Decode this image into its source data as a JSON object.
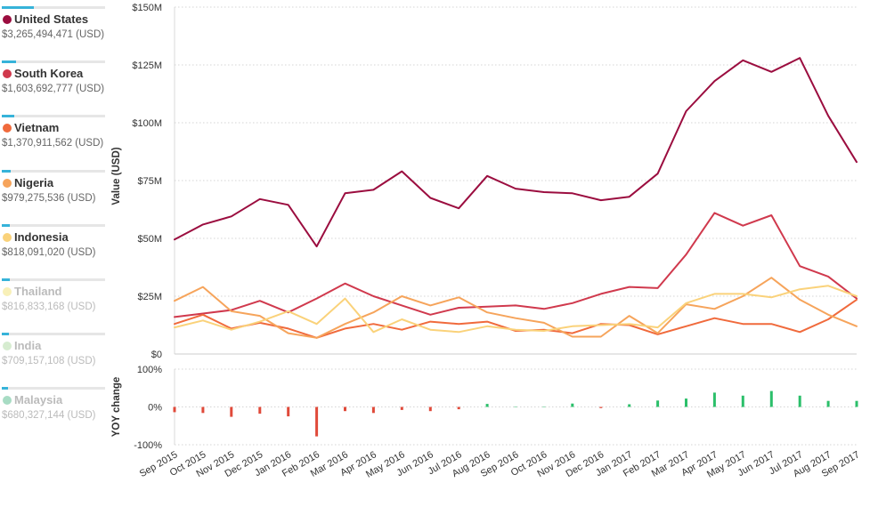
{
  "legend": {
    "items": [
      {
        "name": "United States",
        "value": "$3,265,494,471 (USD)",
        "color": "#9b0d3f",
        "share": 0.31,
        "faded": false
      },
      {
        "name": "South Korea",
        "value": "$1,603,692,777 (USD)",
        "color": "#d0394d",
        "share": 0.14,
        "faded": false
      },
      {
        "name": "Vietnam",
        "value": "$1,370,911,562 (USD)",
        "color": "#f06a3c",
        "share": 0.12,
        "faded": false
      },
      {
        "name": "Nigeria",
        "value": "$979,275,536 (USD)",
        "color": "#f6a45b",
        "share": 0.09,
        "faded": false
      },
      {
        "name": "Indonesia",
        "value": "$818,091,020 (USD)",
        "color": "#fad27a",
        "share": 0.08,
        "faded": false
      },
      {
        "name": "Thailand",
        "value": "$816,833,168 (USD)",
        "color": "#f8f0b8",
        "share": 0.08,
        "faded": true
      },
      {
        "name": "India",
        "value": "$709,157,108 (USD)",
        "color": "#d6ecd0",
        "share": 0.07,
        "faded": true
      },
      {
        "name": "Malaysia",
        "value": "$680,327,144 (USD)",
        "color": "#a8dcc4",
        "share": 0.06,
        "faded": true
      }
    ]
  },
  "chart_data": {
    "type": "line",
    "ylabel": "Value (USD)",
    "y_ticks": [
      "$0",
      "$25M",
      "$50M",
      "$75M",
      "$100M",
      "$125M",
      "$150M"
    ],
    "ylim": [
      0,
      150
    ],
    "y_unit": "millions USD",
    "x": [
      "Sep 2015",
      "Oct 2015",
      "Nov 2015",
      "Dec 2015",
      "Jan 2016",
      "Feb 2016",
      "Mar 2016",
      "Apr 2016",
      "May 2016",
      "Jun 2016",
      "Jul 2016",
      "Aug 2016",
      "Sep 2016",
      "Oct 2016",
      "Nov 2016",
      "Dec 2016",
      "Jan 2017",
      "Feb 2017",
      "Mar 2017",
      "Apr 2017",
      "May 2017",
      "Jun 2017",
      "Jul 2017",
      "Aug 2017",
      "Sep 2017"
    ],
    "series": [
      {
        "name": "United States",
        "color": "#9b0d3f",
        "values": [
          49.5,
          56,
          59.5,
          67,
          64.5,
          46.5,
          69.5,
          71,
          79,
          67.5,
          63,
          77,
          71.5,
          70,
          69.5,
          66.5,
          68,
          78,
          105,
          118,
          127,
          122,
          128,
          103,
          83
        ]
      },
      {
        "name": "South Korea",
        "color": "#d0394d",
        "values": [
          16,
          17.5,
          19,
          23,
          18,
          24,
          30.5,
          25,
          21,
          17,
          20,
          20.5,
          21,
          19.5,
          22,
          26,
          29,
          28.5,
          43,
          61,
          55.5,
          60,
          38,
          33.5,
          24
        ]
      },
      {
        "name": "Vietnam",
        "color": "#f06a3c",
        "values": [
          13,
          17,
          11,
          13.5,
          11,
          7,
          11,
          13,
          10.5,
          14,
          13,
          14,
          10,
          10.5,
          9,
          13,
          12.5,
          8.5,
          12,
          15.5,
          13,
          13,
          9.5,
          15,
          23.5
        ]
      },
      {
        "name": "Nigeria",
        "color": "#f6a45b",
        "values": [
          23,
          29,
          18.5,
          16.5,
          9,
          7,
          13,
          18,
          25,
          21,
          24.5,
          18,
          15.5,
          13.5,
          7.5,
          7.5,
          16.5,
          9,
          21.5,
          19.5,
          25,
          33,
          23.5,
          17,
          12
        ]
      },
      {
        "name": "Indonesia",
        "color": "#fad27a",
        "values": [
          11.5,
          14.5,
          10.5,
          14,
          18.5,
          13,
          24,
          9.5,
          15,
          10.5,
          9.5,
          12,
          10.5,
          10,
          12,
          12.5,
          13,
          11.5,
          22,
          26,
          26,
          24.5,
          28,
          29.5,
          25
        ]
      }
    ],
    "yoy": {
      "ylabel": "YOY change",
      "y_ticks": [
        "100%",
        "0%",
        "-100%"
      ],
      "ylim": [
        -100,
        100
      ],
      "values": [
        -14,
        -16,
        -26,
        -18,
        -25,
        -78,
        -11,
        -16,
        -8,
        -11,
        -6,
        8,
        0,
        0,
        9,
        -3,
        7,
        17,
        22,
        38,
        30,
        42,
        30,
        16,
        16
      ],
      "positive_color": "#2bbf6a",
      "negative_color": "#e04a3a"
    }
  }
}
